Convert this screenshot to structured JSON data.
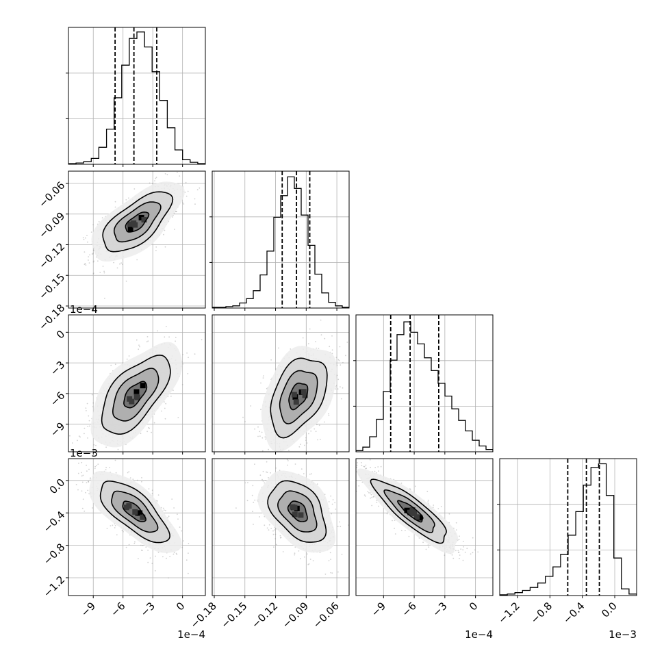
{
  "chart_data": {
    "type": "corner",
    "grid": true,
    "parameters": [
      {
        "range": [
          -11.5,
          2.3
        ],
        "ticks": [
          -9,
          -6,
          -3,
          0
        ],
        "tick_labels": [
          "−9",
          "−6",
          "−3",
          "0"
        ],
        "offset_label": "1e−4"
      },
      {
        "range": [
          -0.182,
          -0.048
        ],
        "ticks": [
          -0.18,
          -0.15,
          -0.12,
          -0.09,
          -0.06
        ],
        "tick_labels": [
          "−0.18",
          "−0.15",
          "−0.12",
          "−0.09",
          "−0.06"
        ],
        "offset_label": ""
      },
      {
        "range": [
          -11.7,
          1.7
        ],
        "ticks": [
          -9,
          -6,
          -3,
          0
        ],
        "tick_labels": [
          "−9",
          "−6",
          "−3",
          "0"
        ],
        "offset_label": "1e−4"
      },
      {
        "range": [
          -1.42,
          0.27
        ],
        "ticks": [
          -1.2,
          -0.8,
          -0.4,
          0.0
        ],
        "tick_labels": [
          "−1.2",
          "−0.8",
          "−0.4",
          "0.0"
        ],
        "offset_label": "1e−3"
      }
    ],
    "histograms": [
      {
        "counts": [
          1,
          2,
          4,
          9,
          26,
          54,
          102,
          152,
          193,
          203,
          180,
          142,
          98,
          56,
          22,
          7,
          3,
          1
        ],
        "quantiles": [
          -6.8,
          -4.9,
          -2.6
        ],
        "ymax": 210
      },
      {
        "counts": [
          1,
          1,
          2,
          3,
          7,
          13,
          24,
          46,
          79,
          126,
          156,
          182,
          166,
          129,
          87,
          47,
          21,
          8,
          3,
          1
        ],
        "quantiles": [
          -0.1135,
          -0.0995,
          -0.0865
        ],
        "ymax": 190
      },
      {
        "counts": [
          1,
          4,
          13,
          28,
          52,
          79,
          101,
          112,
          103,
          93,
          81,
          70,
          59,
          48,
          37,
          27,
          18,
          10,
          5,
          2
        ],
        "quantiles": [
          -8.3,
          -6.4,
          -3.6
        ],
        "ymax": 118
      },
      {
        "counts": [
          1,
          2,
          4,
          7,
          11,
          17,
          26,
          39,
          56,
          82,
          114,
          150,
          174,
          179,
          136,
          51,
          9,
          2
        ],
        "quantiles": [
          -0.58,
          -0.35,
          -0.19
        ],
        "ymax": 186
      }
    ],
    "joint": [
      {
        "x_param": 0,
        "y_param": 1,
        "mean": [
          -4.6,
          -0.098
        ],
        "sd": [
          2.0,
          0.017
        ],
        "rho": 0.66
      },
      {
        "x_param": 0,
        "y_param": 2,
        "mean": [
          -4.8,
          -6.1
        ],
        "sd": [
          2.0,
          2.2
        ],
        "rho": 0.62
      },
      {
        "x_param": 1,
        "y_param": 2,
        "mean": [
          -0.098,
          -6.2
        ],
        "sd": [
          0.016,
          2.2
        ],
        "rho": 0.42
      },
      {
        "x_param": 0,
        "y_param": 3,
        "mean": [
          -4.9,
          -0.38
        ],
        "sd": [
          2.0,
          0.22
        ],
        "rho": -0.72
      },
      {
        "x_param": 1,
        "y_param": 3,
        "mean": [
          -0.098,
          -0.38
        ],
        "sd": [
          0.016,
          0.22
        ],
        "rho": -0.42
      },
      {
        "x_param": 2,
        "y_param": 3,
        "mean": [
          -6.3,
          -0.38
        ],
        "sd": [
          2.1,
          0.22
        ],
        "rho": -0.86
      }
    ],
    "contour_levels_sigma": [
      0.5,
      1.0,
      1.5,
      2.0
    ]
  },
  "style": {
    "line_color": "#000000",
    "point_color": "#9a9a9a",
    "grid_color": "#b0b0b0"
  }
}
